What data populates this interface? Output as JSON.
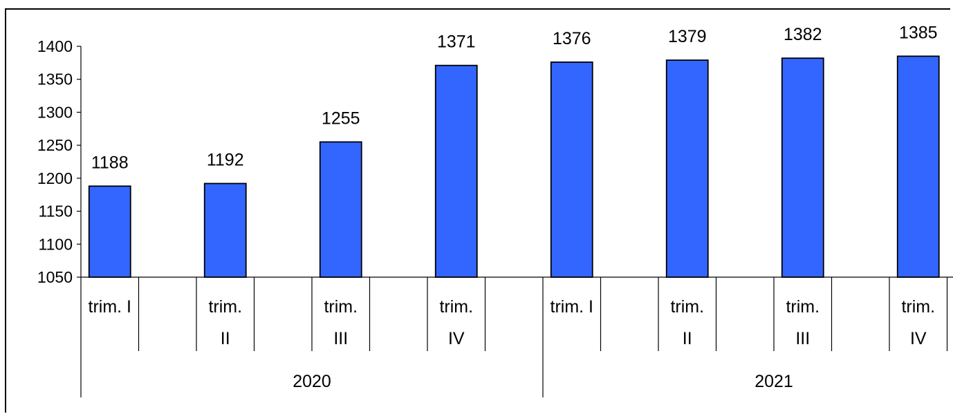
{
  "chart_data": {
    "type": "bar",
    "title": "",
    "xlabel": "",
    "ylabel": "",
    "ylim": [
      1050,
      1400
    ],
    "yticks": [
      1050,
      1100,
      1150,
      1200,
      1250,
      1300,
      1350,
      1400
    ],
    "bar_color": "#3366FF",
    "groups": [
      {
        "label": "2020",
        "categories": [
          [
            "trim. I"
          ],
          [
            "trim.",
            "II"
          ],
          [
            "trim.",
            "III"
          ],
          [
            "trim.",
            "IV"
          ]
        ]
      },
      {
        "label": "2021",
        "categories": [
          [
            "trim. I"
          ],
          [
            "trim.",
            "II"
          ],
          [
            "trim.",
            "III"
          ],
          [
            "trim.",
            "IV"
          ]
        ]
      }
    ],
    "values": [
      1188,
      1192,
      1255,
      1371,
      1376,
      1379,
      1382,
      1385
    ],
    "grid": false,
    "legend": "none"
  }
}
